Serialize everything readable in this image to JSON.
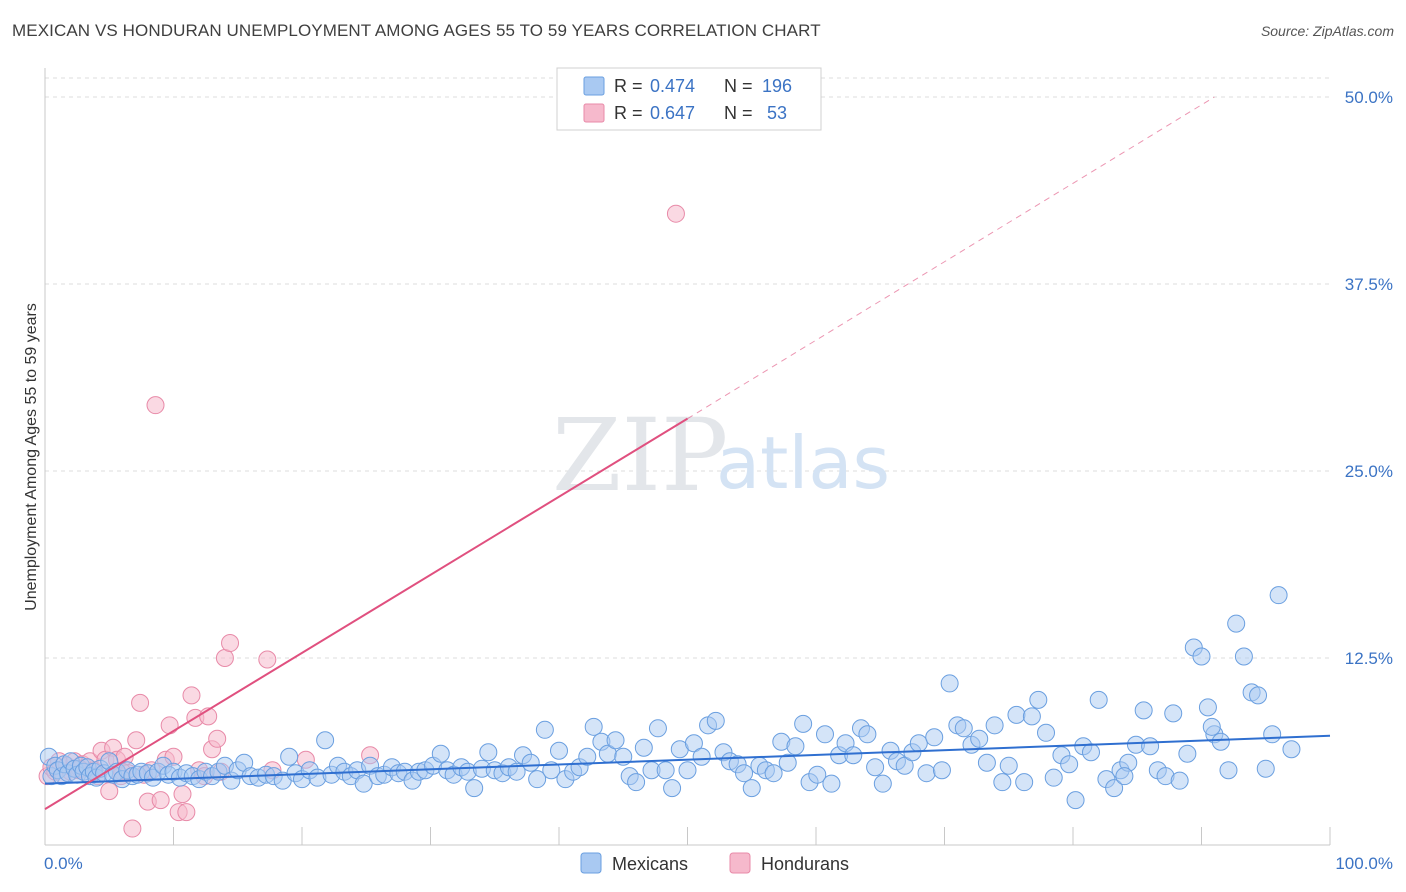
{
  "header": {
    "title": "MEXICAN VS HONDURAN UNEMPLOYMENT AMONG AGES 55 TO 59 YEARS CORRELATION CHART",
    "source": "Source: ZipAtlas.com"
  },
  "watermark": {
    "zip": "ZIP",
    "atlas": "atlas"
  },
  "legend": {
    "rows": [
      {
        "r_label": "R = ",
        "r_value": "0.474",
        "n_label": "N = ",
        "n_value": "196",
        "color": "#a9c9f2"
      },
      {
        "r_label": "R = ",
        "r_value": "0.647",
        "n_label": "N = ",
        "n_value": " 53",
        "color": "#f6b9cc"
      }
    ]
  },
  "bottom_legend": {
    "mexicans": "Mexicans",
    "hondurans": "Hondurans"
  },
  "colors": {
    "mexicans_fill": "#a9c9f2",
    "mexicans_stroke": "#6a9fe0",
    "mexicans_line": "#2f6fd0",
    "hondurans_fill": "#f6b9cc",
    "hondurans_stroke": "#e88aa8",
    "hondurans_line": "#e0507f",
    "grid": "#dcdcdc",
    "axis_tick_text": "#3b73c4"
  },
  "chart_data": {
    "type": "scatter",
    "title": "MEXICAN VS HONDURAN UNEMPLOYMENT AMONG AGES 55 TO 59 YEARS CORRELATION CHART",
    "xlabel": "",
    "ylabel": "Unemployment Among Ages 55 to 59 years",
    "xlim": [
      0,
      100
    ],
    "ylim": [
      0,
      50
    ],
    "x_tick_labels": [
      "0.0%",
      "100.0%"
    ],
    "y_ticks": [
      12.5,
      25.0,
      37.5,
      50.0
    ],
    "y_tick_labels": [
      "12.5%",
      "25.0%",
      "37.5%",
      "50.0%"
    ],
    "grid": true,
    "legend_position": "top-center",
    "series": [
      {
        "name": "Mexicans",
        "trend": {
          "x": [
            0,
            100
          ],
          "y": [
            4.1,
            7.3
          ]
        },
        "points": [
          [
            0.3,
            5.9
          ],
          [
            0.5,
            4.6
          ],
          [
            0.8,
            5.3
          ],
          [
            1.0,
            5.0
          ],
          [
            1.3,
            4.6
          ],
          [
            1.5,
            5.4
          ],
          [
            1.8,
            4.8
          ],
          [
            2.0,
            5.6
          ],
          [
            2.3,
            5.1
          ],
          [
            2.5,
            4.7
          ],
          [
            2.8,
            5.3
          ],
          [
            3.0,
            4.9
          ],
          [
            3.3,
            5.2
          ],
          [
            3.5,
            4.6
          ],
          [
            3.8,
            4.9
          ],
          [
            4.0,
            4.5
          ],
          [
            4.3,
            5.1
          ],
          [
            4.6,
            4.8
          ],
          [
            5.0,
            5.6
          ],
          [
            5.3,
            4.7
          ],
          [
            5.6,
            4.9
          ],
          [
            6.0,
            4.4
          ],
          [
            6.4,
            5.0
          ],
          [
            6.8,
            4.6
          ],
          [
            7.2,
            4.7
          ],
          [
            7.5,
            4.9
          ],
          [
            8.0,
            4.8
          ],
          [
            8.4,
            4.5
          ],
          [
            8.8,
            4.9
          ],
          [
            9.2,
            5.3
          ],
          [
            9.6,
            4.7
          ],
          [
            10.0,
            4.9
          ],
          [
            10.5,
            4.5
          ],
          [
            11.0,
            4.8
          ],
          [
            11.5,
            4.6
          ],
          [
            12.0,
            4.4
          ],
          [
            12.5,
            4.9
          ],
          [
            13.0,
            4.6
          ],
          [
            13.5,
            4.9
          ],
          [
            14.0,
            5.3
          ],
          [
            14.5,
            4.3
          ],
          [
            15.0,
            5.0
          ],
          [
            15.5,
            5.5
          ],
          [
            16.0,
            4.6
          ],
          [
            16.6,
            4.5
          ],
          [
            17.2,
            4.7
          ],
          [
            17.8,
            4.6
          ],
          [
            18.5,
            4.3
          ],
          [
            19.0,
            5.9
          ],
          [
            19.5,
            4.8
          ],
          [
            20.0,
            4.4
          ],
          [
            20.6,
            5.0
          ],
          [
            21.2,
            4.5
          ],
          [
            21.8,
            7.0
          ],
          [
            22.3,
            4.7
          ],
          [
            22.8,
            5.3
          ],
          [
            23.3,
            4.9
          ],
          [
            23.8,
            4.6
          ],
          [
            24.3,
            5.0
          ],
          [
            24.8,
            4.1
          ],
          [
            25.3,
            5.3
          ],
          [
            25.9,
            4.6
          ],
          [
            26.4,
            4.7
          ],
          [
            27.0,
            5.2
          ],
          [
            27.5,
            4.8
          ],
          [
            28.0,
            4.9
          ],
          [
            28.6,
            4.3
          ],
          [
            29.1,
            4.9
          ],
          [
            29.6,
            5.0
          ],
          [
            30.2,
            5.3
          ],
          [
            30.8,
            6.1
          ],
          [
            31.3,
            5.0
          ],
          [
            31.8,
            4.7
          ],
          [
            32.4,
            5.2
          ],
          [
            32.9,
            4.9
          ],
          [
            33.4,
            3.8
          ],
          [
            34.0,
            5.1
          ],
          [
            34.5,
            6.2
          ],
          [
            35.0,
            5.0
          ],
          [
            35.6,
            4.8
          ],
          [
            36.1,
            5.2
          ],
          [
            36.7,
            4.9
          ],
          [
            37.2,
            6.0
          ],
          [
            37.8,
            5.5
          ],
          [
            38.3,
            4.4
          ],
          [
            38.9,
            7.7
          ],
          [
            39.4,
            5.0
          ],
          [
            40.0,
            6.3
          ],
          [
            40.5,
            4.4
          ],
          [
            41.1,
            4.9
          ],
          [
            41.6,
            5.2
          ],
          [
            42.2,
            5.9
          ],
          [
            42.7,
            7.9
          ],
          [
            43.3,
            6.9
          ],
          [
            43.8,
            6.1
          ],
          [
            44.4,
            7.0
          ],
          [
            45.0,
            5.9
          ],
          [
            45.5,
            4.6
          ],
          [
            46.0,
            4.2
          ],
          [
            46.6,
            6.5
          ],
          [
            47.2,
            5.0
          ],
          [
            47.7,
            7.8
          ],
          [
            48.3,
            5.0
          ],
          [
            48.8,
            3.8
          ],
          [
            49.4,
            6.4
          ],
          [
            50.0,
            5.0
          ],
          [
            50.5,
            6.8
          ],
          [
            51.1,
            5.9
          ],
          [
            51.6,
            8.0
          ],
          [
            52.2,
            8.3
          ],
          [
            52.8,
            6.2
          ],
          [
            53.3,
            5.6
          ],
          [
            53.9,
            5.4
          ],
          [
            54.4,
            4.8
          ],
          [
            55.0,
            3.8
          ],
          [
            55.6,
            5.3
          ],
          [
            56.1,
            5.0
          ],
          [
            56.7,
            4.8
          ],
          [
            57.3,
            6.9
          ],
          [
            57.8,
            5.5
          ],
          [
            58.4,
            6.6
          ],
          [
            59.0,
            8.1
          ],
          [
            59.5,
            4.2
          ],
          [
            60.1,
            4.7
          ],
          [
            60.7,
            7.4
          ],
          [
            61.2,
            4.1
          ],
          [
            61.8,
            6.0
          ],
          [
            62.3,
            6.8
          ],
          [
            62.9,
            6.0
          ],
          [
            63.5,
            7.8
          ],
          [
            64.0,
            7.4
          ],
          [
            64.6,
            5.2
          ],
          [
            65.2,
            4.1
          ],
          [
            65.8,
            6.3
          ],
          [
            66.3,
            5.6
          ],
          [
            66.9,
            5.3
          ],
          [
            67.5,
            6.2
          ],
          [
            68.0,
            6.8
          ],
          [
            68.6,
            4.8
          ],
          [
            69.2,
            7.2
          ],
          [
            69.8,
            5.0
          ],
          [
            70.4,
            10.8
          ],
          [
            71.0,
            8.0
          ],
          [
            71.5,
            7.8
          ],
          [
            72.1,
            6.7
          ],
          [
            72.7,
            7.1
          ],
          [
            73.3,
            5.5
          ],
          [
            73.9,
            8.0
          ],
          [
            74.5,
            4.2
          ],
          [
            75.0,
            5.3
          ],
          [
            75.6,
            8.7
          ],
          [
            76.2,
            4.2
          ],
          [
            76.8,
            8.6
          ],
          [
            77.3,
            9.7
          ],
          [
            77.9,
            7.5
          ],
          [
            78.5,
            4.5
          ],
          [
            79.1,
            6.0
          ],
          [
            79.7,
            5.4
          ],
          [
            80.2,
            3.0
          ],
          [
            80.8,
            6.6
          ],
          [
            81.4,
            6.2
          ],
          [
            82.0,
            9.7
          ],
          [
            82.6,
            4.4
          ],
          [
            83.2,
            3.8
          ],
          [
            83.7,
            5.0
          ],
          [
            84.3,
            5.5
          ],
          [
            84.9,
            6.7
          ],
          [
            85.5,
            9.0
          ],
          [
            86.0,
            6.6
          ],
          [
            86.6,
            5.0
          ],
          [
            87.2,
            4.6
          ],
          [
            87.8,
            8.8
          ],
          [
            88.3,
            4.3
          ],
          [
            88.9,
            6.1
          ],
          [
            89.4,
            13.2
          ],
          [
            90.0,
            12.6
          ],
          [
            90.5,
            9.2
          ],
          [
            91.0,
            7.4
          ],
          [
            91.5,
            6.9
          ],
          [
            92.1,
            5.0
          ],
          [
            92.7,
            14.8
          ],
          [
            93.3,
            12.6
          ],
          [
            93.9,
            10.2
          ],
          [
            94.4,
            10.0
          ],
          [
            95.0,
            5.1
          ],
          [
            96.0,
            16.7
          ],
          [
            95.5,
            7.4
          ],
          [
            97.0,
            6.4
          ],
          [
            84.0,
            4.6
          ],
          [
            90.8,
            7.9
          ]
        ]
      },
      {
        "name": "Hondurans",
        "trend": {
          "x": [
            0,
            50
          ],
          "y": [
            2.4,
            28.5
          ]
        },
        "trend_dashed": {
          "x": [
            50,
            91
          ],
          "y": [
            28.5,
            50.0
          ]
        },
        "points": [
          [
            0.2,
            4.6
          ],
          [
            0.5,
            5.2
          ],
          [
            0.8,
            4.9
          ],
          [
            1.1,
            5.6
          ],
          [
            1.4,
            4.7
          ],
          [
            1.7,
            5.3
          ],
          [
            2.0,
            4.9
          ],
          [
            2.3,
            5.6
          ],
          [
            2.6,
            5.0
          ],
          [
            2.9,
            5.4
          ],
          [
            3.2,
            4.8
          ],
          [
            3.5,
            5.6
          ],
          [
            3.8,
            5.0
          ],
          [
            4.1,
            4.6
          ],
          [
            4.4,
            6.3
          ],
          [
            4.7,
            5.7
          ],
          [
            5.0,
            3.6
          ],
          [
            5.3,
            6.5
          ],
          [
            5.6,
            5.7
          ],
          [
            5.9,
            4.6
          ],
          [
            6.2,
            5.9
          ],
          [
            6.5,
            4.8
          ],
          [
            6.8,
            1.1
          ],
          [
            7.1,
            7.0
          ],
          [
            7.4,
            9.5
          ],
          [
            7.7,
            4.7
          ],
          [
            8.0,
            2.9
          ],
          [
            8.3,
            5.0
          ],
          [
            8.6,
            29.4
          ],
          [
            9.0,
            3.0
          ],
          [
            9.4,
            5.7
          ],
          [
            9.7,
            8.0
          ],
          [
            10.0,
            5.9
          ],
          [
            10.4,
            2.2
          ],
          [
            10.7,
            3.4
          ],
          [
            11.0,
            2.2
          ],
          [
            11.4,
            10.0
          ],
          [
            11.7,
            8.5
          ],
          [
            12.0,
            5.0
          ],
          [
            12.4,
            4.6
          ],
          [
            12.7,
            8.6
          ],
          [
            13.0,
            6.4
          ],
          [
            13.4,
            7.1
          ],
          [
            13.7,
            4.9
          ],
          [
            14.0,
            12.5
          ],
          [
            14.4,
            13.5
          ],
          [
            17.3,
            12.4
          ],
          [
            17.7,
            5.0
          ],
          [
            20.3,
            5.7
          ],
          [
            25.3,
            6.0
          ],
          [
            49.1,
            42.2
          ],
          [
            6.0,
            4.9
          ],
          [
            2.7,
            5.1
          ]
        ]
      }
    ]
  }
}
